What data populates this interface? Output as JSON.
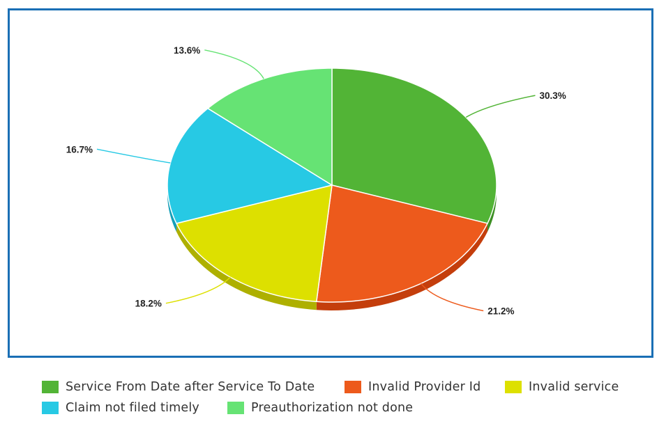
{
  "chart_data": {
    "type": "pie",
    "style": "3d",
    "title": "",
    "series": [
      {
        "name": "Service From Date after Service To Date",
        "value": 30.3,
        "label": "30.3%",
        "color": "#52b436",
        "side_color": "#3d8f25"
      },
      {
        "name": "Invalid Provider Id",
        "value": 21.2,
        "label": "21.2%",
        "color": "#ed5a1c",
        "side_color": "#c43e0c"
      },
      {
        "name": "Invalid service",
        "value": 18.2,
        "label": "18.2%",
        "color": "#dde000",
        "side_color": "#aeb000"
      },
      {
        "name": "Claim not filed timely",
        "value": 16.7,
        "label": "16.7%",
        "color": "#27c9e4",
        "side_color": "#159fb8"
      },
      {
        "name": "Preauthorization not done",
        "value": 13.6,
        "label": "13.6%",
        "color": "#66e374",
        "side_color": "#45b852"
      }
    ],
    "legend_position": "bottom"
  },
  "colors": {
    "frame_border": "#1a6fb5"
  }
}
